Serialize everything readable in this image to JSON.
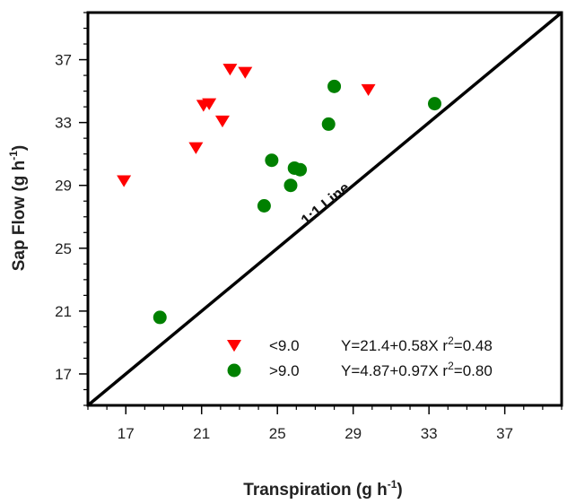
{
  "chart_data": {
    "type": "scatter",
    "xlabel": "Transpiration (g h",
    "xlabel_sup": "-1",
    "xlabel_end": ")",
    "ylabel": "Sap Flow (g h",
    "ylabel_sup": "-1",
    "ylabel_end": ")",
    "xlim": [
      15,
      40
    ],
    "ylim": [
      15,
      40
    ],
    "xticks": [
      17,
      21,
      25,
      29,
      33,
      37
    ],
    "yticks": [
      17,
      21,
      25,
      29,
      33,
      37
    ],
    "reference_line_label": "1:1 Line",
    "grid": false,
    "legend_position": "bottom-right",
    "series": [
      {
        "name": "<9.0",
        "marker": "triangle-down",
        "color": "#ff0000",
        "equation": "Y=21.4+0.58X r",
        "r2_label": "2",
        "r2_value": "=0.48",
        "points": [
          {
            "x": 16.9,
            "y": 29.3
          },
          {
            "x": 20.7,
            "y": 31.4
          },
          {
            "x": 21.1,
            "y": 34.1
          },
          {
            "x": 21.4,
            "y": 34.2
          },
          {
            "x": 22.1,
            "y": 33.1
          },
          {
            "x": 22.5,
            "y": 36.4
          },
          {
            "x": 23.3,
            "y": 36.2
          },
          {
            "x": 29.8,
            "y": 35.1
          }
        ]
      },
      {
        "name": ">9.0",
        "marker": "circle",
        "color": "#008000",
        "equation": "Y=4.87+0.97X r",
        "r2_label": "2",
        "r2_value": "=0.80",
        "points": [
          {
            "x": 18.8,
            "y": 20.6
          },
          {
            "x": 24.3,
            "y": 27.7
          },
          {
            "x": 24.7,
            "y": 30.6
          },
          {
            "x": 25.7,
            "y": 29.0
          },
          {
            "x": 25.9,
            "y": 30.1
          },
          {
            "x": 26.2,
            "y": 30.0
          },
          {
            "x": 27.7,
            "y": 32.9
          },
          {
            "x": 28.0,
            "y": 35.3
          },
          {
            "x": 33.3,
            "y": 34.2
          }
        ]
      }
    ]
  }
}
